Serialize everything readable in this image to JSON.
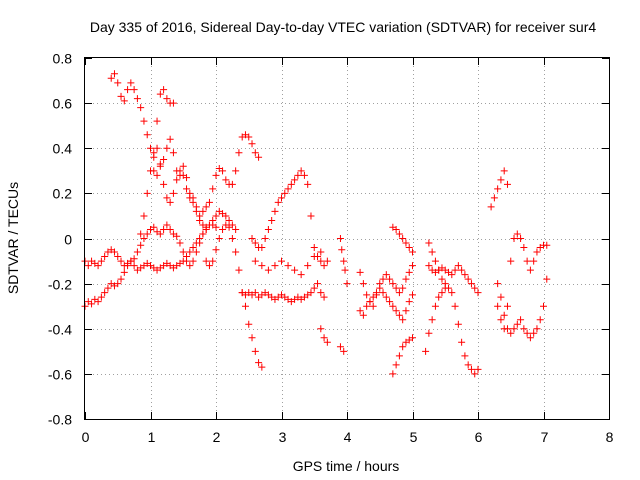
{
  "chart_data": {
    "type": "scatter",
    "title": "Day 335 of 2016, Sidereal Day-to-day VTEC variation (SDTVAR) for receiver sur4",
    "xlabel": "GPS time / hours",
    "ylabel": "SDTVAR / TECUs",
    "xlim": [
      0,
      8
    ],
    "ylim": [
      -0.8,
      0.8
    ],
    "x_ticks": [
      0,
      1,
      2,
      3,
      4,
      5,
      6,
      7,
      8
    ],
    "y_ticks": [
      0.8,
      0.6,
      0.4,
      0.2,
      0,
      -0.2,
      -0.4,
      -0.6,
      -0.8
    ],
    "x_tick_labels": [
      "0",
      "1",
      "2",
      "3",
      "4",
      "5",
      "6",
      "7",
      "8"
    ],
    "y_tick_labels": [
      "0.8",
      "0.6",
      "0.4",
      "0.2",
      "0",
      "-0.2",
      "-0.4",
      "-0.6",
      "-0.8"
    ],
    "grid": true,
    "marker": "+",
    "color": "#ff0000",
    "series": [
      {
        "name": "upper-arc-1",
        "x": [
          0.4,
          0.45,
          0.5,
          0.55,
          0.6,
          0.65,
          0.7,
          0.75,
          0.8,
          0.85,
          0.9,
          0.95,
          1.0,
          1.05,
          1.1,
          1.15,
          1.2,
          1.25,
          1.3,
          1.35
        ],
        "y": [
          0.71,
          0.73,
          0.69,
          0.63,
          0.61,
          0.66,
          0.69,
          0.66,
          0.62,
          0.58,
          0.52,
          0.46,
          0.4,
          0.38,
          0.52,
          0.64,
          0.66,
          0.62,
          0.6,
          0.6
        ]
      },
      {
        "name": "upper-arc-2",
        "x": [
          1.05,
          1.1,
          1.15,
          1.2,
          1.25,
          1.3,
          1.35,
          1.4,
          1.45,
          1.5,
          1.55,
          1.6,
          1.65,
          1.7,
          1.75,
          1.8,
          1.85,
          1.9,
          1.95,
          2.0,
          2.05,
          2.1,
          2.15,
          2.2,
          2.25,
          2.3,
          2.35,
          2.4,
          2.45,
          2.5,
          2.55,
          2.6,
          2.65
        ],
        "y": [
          0.3,
          0.28,
          0.33,
          0.35,
          0.4,
          0.44,
          0.38,
          0.3,
          0.28,
          0.32,
          0.27,
          0.2,
          0.18,
          0.14,
          0.1,
          0.12,
          0.14,
          0.16,
          0.22,
          0.28,
          0.31,
          0.3,
          0.26,
          0.24,
          0.24,
          0.3,
          0.38,
          0.45,
          0.46,
          0.45,
          0.42,
          0.38,
          0.36
        ]
      },
      {
        "name": "rising-track-1",
        "x": [
          0.85,
          0.9,
          0.95,
          1.0,
          1.05,
          1.1,
          1.15,
          1.2,
          1.25,
          1.3,
          1.35,
          1.4,
          1.45,
          1.5,
          1.55,
          1.6,
          1.65,
          1.7,
          1.75,
          1.8,
          1.85
        ],
        "y": [
          0.02,
          0.1,
          0.2,
          0.3,
          0.36,
          0.4,
          0.32,
          0.24,
          0.18,
          0.16,
          0.2,
          0.26,
          0.3,
          0.28,
          0.22,
          0.18,
          0.16,
          0.12,
          0.08,
          0.06,
          0.04
        ]
      },
      {
        "name": "midband-1",
        "x": [
          0.0,
          0.05,
          0.1,
          0.15,
          0.2,
          0.25,
          0.3,
          0.35,
          0.4,
          0.45,
          0.5,
          0.55,
          0.6,
          0.65,
          0.7,
          0.75,
          0.8,
          0.85,
          0.9,
          0.95,
          1.0,
          1.05,
          1.1,
          1.15,
          1.2,
          1.25,
          1.3,
          1.35,
          1.4,
          1.45,
          1.5,
          1.55,
          1.6,
          1.65,
          1.7,
          1.75,
          1.8,
          1.85,
          1.9,
          1.95,
          2.0
        ],
        "y": [
          -0.1,
          -0.12,
          -0.1,
          -0.11,
          -0.12,
          -0.1,
          -0.08,
          -0.06,
          -0.05,
          -0.06,
          -0.08,
          -0.1,
          -0.12,
          -0.11,
          -0.1,
          -0.09,
          -0.06,
          -0.03,
          0.0,
          0.02,
          0.04,
          0.05,
          0.03,
          0.02,
          0.04,
          0.06,
          0.04,
          0.02,
          0.01,
          -0.02,
          -0.06,
          -0.1,
          -0.12,
          -0.1,
          -0.06,
          -0.02,
          0.02,
          0.05,
          0.06,
          0.06,
          0.05
        ]
      },
      {
        "name": "lower-band-1",
        "x": [
          0.0,
          0.05,
          0.1,
          0.15,
          0.2,
          0.25,
          0.3,
          0.35,
          0.4,
          0.45,
          0.5,
          0.55,
          0.6,
          0.65,
          0.7,
          0.75,
          0.8,
          0.85,
          0.9,
          0.95,
          1.0,
          1.05,
          1.1,
          1.15,
          1.2,
          1.25,
          1.3,
          1.35,
          1.4,
          1.45,
          1.5,
          1.55,
          1.6,
          1.65,
          1.7,
          1.75,
          1.8,
          1.85,
          1.9,
          1.95,
          2.0,
          2.05,
          2.1,
          2.15,
          2.2,
          2.25,
          2.3
        ],
        "y": [
          -0.3,
          -0.28,
          -0.29,
          -0.27,
          -0.28,
          -0.26,
          -0.24,
          -0.22,
          -0.2,
          -0.21,
          -0.2,
          -0.18,
          -0.15,
          -0.12,
          -0.1,
          -0.12,
          -0.14,
          -0.13,
          -0.12,
          -0.11,
          -0.12,
          -0.13,
          -0.14,
          -0.13,
          -0.12,
          -0.11,
          -0.12,
          -0.13,
          -0.12,
          -0.11,
          -0.1,
          -0.08,
          -0.06,
          -0.04,
          -0.02,
          0.0,
          0.02,
          0.04,
          0.06,
          0.08,
          0.1,
          0.12,
          0.11,
          0.1,
          0.08,
          0.06,
          0.04
        ]
      },
      {
        "name": "descending-track",
        "x": [
          1.85,
          1.9,
          1.95,
          2.0,
          2.05,
          2.1,
          2.15,
          2.2,
          2.25,
          2.3,
          2.35,
          2.4,
          2.45,
          2.5,
          2.55,
          2.6,
          2.65,
          2.7,
          2.75,
          2.8,
          2.85,
          2.9,
          2.95,
          3.0,
          3.05,
          3.1,
          3.15,
          3.2,
          3.25,
          3.3,
          3.35,
          3.4,
          3.45,
          3.5,
          3.55,
          3.6,
          3.65
        ],
        "y": [
          -0.1,
          -0.12,
          -0.1,
          -0.05,
          0.0,
          0.04,
          0.06,
          0.05,
          0.0,
          -0.06,
          -0.14,
          -0.24,
          -0.25,
          -0.24,
          -0.25,
          -0.24,
          -0.26,
          -0.25,
          -0.24,
          -0.25,
          -0.26,
          -0.27,
          -0.26,
          -0.25,
          -0.26,
          -0.27,
          -0.28,
          -0.27,
          -0.26,
          -0.27,
          -0.26,
          -0.25,
          -0.24,
          -0.22,
          -0.2,
          -0.24,
          -0.26
        ]
      },
      {
        "name": "drop-2p5",
        "x": [
          2.4,
          2.45,
          2.5,
          2.55,
          2.6,
          2.65,
          2.7
        ],
        "y": [
          -0.24,
          -0.3,
          -0.38,
          -0.44,
          -0.5,
          -0.55,
          -0.57
        ]
      },
      {
        "name": "hump-3",
        "x": [
          2.55,
          2.6,
          2.65,
          2.7,
          2.75,
          2.8,
          2.85,
          2.9,
          2.95,
          3.0,
          3.05,
          3.1,
          3.15,
          3.2,
          3.25,
          3.3,
          3.35,
          3.4,
          3.45,
          3.5,
          3.55,
          3.6,
          3.65
        ],
        "y": [
          0.0,
          -0.02,
          -0.04,
          -0.04,
          0.0,
          0.04,
          0.08,
          0.12,
          0.16,
          0.18,
          0.2,
          0.22,
          0.24,
          0.26,
          0.28,
          0.3,
          0.28,
          0.24,
          0.1,
          -0.04,
          -0.08,
          -0.1,
          -0.12
        ]
      },
      {
        "name": "midband-3",
        "x": [
          2.6,
          2.7,
          2.8,
          2.9,
          3.0,
          3.1,
          3.2,
          3.3,
          3.4,
          3.5,
          3.6,
          3.7
        ],
        "y": [
          -0.1,
          -0.12,
          -0.14,
          -0.12,
          -0.1,
          -0.12,
          -0.14,
          -0.16,
          -0.12,
          -0.08,
          -0.06,
          -0.1
        ]
      },
      {
        "name": "tail-3p7",
        "x": [
          3.6,
          3.65,
          3.7
        ],
        "y": [
          -0.4,
          -0.44,
          -0.46
        ]
      },
      {
        "name": "isolated-4",
        "x": [
          3.9,
          3.92,
          3.95,
          3.97,
          4.0,
          3.9,
          3.95
        ],
        "y": [
          0.0,
          -0.05,
          -0.1,
          -0.14,
          -0.2,
          -0.48,
          -0.5
        ]
      },
      {
        "name": "cluster-4p5",
        "x": [
          4.2,
          4.25,
          4.3,
          4.35,
          4.4,
          4.45,
          4.5,
          4.55,
          4.6,
          4.65,
          4.7,
          4.75,
          4.8,
          4.85,
          4.9,
          4.95,
          5.0
        ],
        "y": [
          -0.15,
          -0.2,
          -0.25,
          -0.28,
          -0.3,
          -0.25,
          -0.2,
          -0.18,
          -0.16,
          -0.18,
          -0.2,
          -0.22,
          -0.24,
          -0.22,
          -0.18,
          -0.15,
          -0.12
        ]
      },
      {
        "name": "cluster-4p5-lower",
        "x": [
          4.2,
          4.25,
          4.3,
          4.35,
          4.4,
          4.45,
          4.5,
          4.55,
          4.6,
          4.65,
          4.7,
          4.75,
          4.8,
          4.85,
          4.9,
          4.95,
          5.0
        ],
        "y": [
          -0.32,
          -0.34,
          -0.3,
          -0.28,
          -0.26,
          -0.24,
          -0.22,
          -0.24,
          -0.26,
          -0.28,
          -0.3,
          -0.32,
          -0.34,
          -0.36,
          -0.32,
          -0.28,
          -0.25
        ]
      },
      {
        "name": "rising-4p8",
        "x": [
          4.7,
          4.75,
          4.8,
          4.85,
          4.9,
          4.95,
          5.0
        ],
        "y": [
          -0.6,
          -0.56,
          -0.52,
          -0.48,
          -0.46,
          -0.45,
          -0.44
        ]
      },
      {
        "name": "upper-4p8",
        "x": [
          4.7,
          4.75,
          4.8,
          4.85,
          4.9,
          4.95,
          5.0
        ],
        "y": [
          0.05,
          0.04,
          0.02,
          0.0,
          -0.02,
          -0.04,
          -0.06
        ]
      },
      {
        "name": "cluster-5p5",
        "x": [
          5.25,
          5.3,
          5.35,
          5.4,
          5.45,
          5.5,
          5.55,
          5.6,
          5.65,
          5.7,
          5.75,
          5.8,
          5.85,
          5.9,
          5.95,
          6.0
        ],
        "y": [
          -0.12,
          -0.14,
          -0.15,
          -0.14,
          -0.13,
          -0.14,
          -0.15,
          -0.16,
          -0.14,
          -0.12,
          -0.14,
          -0.16,
          -0.18,
          -0.2,
          -0.22,
          -0.24
        ]
      },
      {
        "name": "lower-5p5",
        "x": [
          5.2,
          5.25,
          5.3,
          5.35,
          5.4,
          5.45,
          5.5,
          5.55,
          5.6,
          5.65,
          5.7,
          5.75,
          5.8,
          5.85,
          5.9,
          5.95,
          6.0
        ],
        "y": [
          -0.5,
          -0.42,
          -0.36,
          -0.3,
          -0.26,
          -0.24,
          -0.22,
          -0.22,
          -0.24,
          -0.3,
          -0.38,
          -0.46,
          -0.52,
          -0.56,
          -0.58,
          -0.6,
          -0.58
        ]
      },
      {
        "name": "upper-5p5",
        "x": [
          5.25,
          5.3,
          5.35,
          5.4,
          5.45,
          5.5
        ],
        "y": [
          -0.02,
          -0.06,
          -0.1,
          -0.14,
          -0.18,
          -0.2
        ]
      },
      {
        "name": "rise-6p4",
        "x": [
          6.2,
          6.25,
          6.3,
          6.35,
          6.4,
          6.45
        ],
        "y": [
          0.14,
          0.18,
          0.22,
          0.26,
          0.3,
          0.24
        ]
      },
      {
        "name": "cluster-6p7",
        "x": [
          6.3,
          6.35,
          6.4,
          6.45,
          6.5,
          6.55,
          6.6,
          6.65,
          6.7,
          6.75,
          6.8,
          6.85,
          6.9,
          6.95,
          7.0,
          7.05
        ],
        "y": [
          -0.3,
          -0.36,
          -0.4,
          -0.3,
          -0.1,
          0.0,
          0.02,
          0.0,
          -0.04,
          -0.1,
          -0.14,
          -0.1,
          -0.06,
          -0.04,
          -0.03,
          -0.03
        ]
      },
      {
        "name": "lower-6p7",
        "x": [
          6.3,
          6.35,
          6.4,
          6.45,
          6.5,
          6.55,
          6.6,
          6.65,
          6.7,
          6.75,
          6.8,
          6.85,
          6.9,
          6.95,
          7.0,
          7.05
        ],
        "y": [
          -0.2,
          -0.26,
          -0.34,
          -0.4,
          -0.42,
          -0.4,
          -0.38,
          -0.36,
          -0.4,
          -0.42,
          -0.44,
          -0.42,
          -0.4,
          -0.36,
          -0.3,
          -0.18
        ]
      }
    ]
  }
}
